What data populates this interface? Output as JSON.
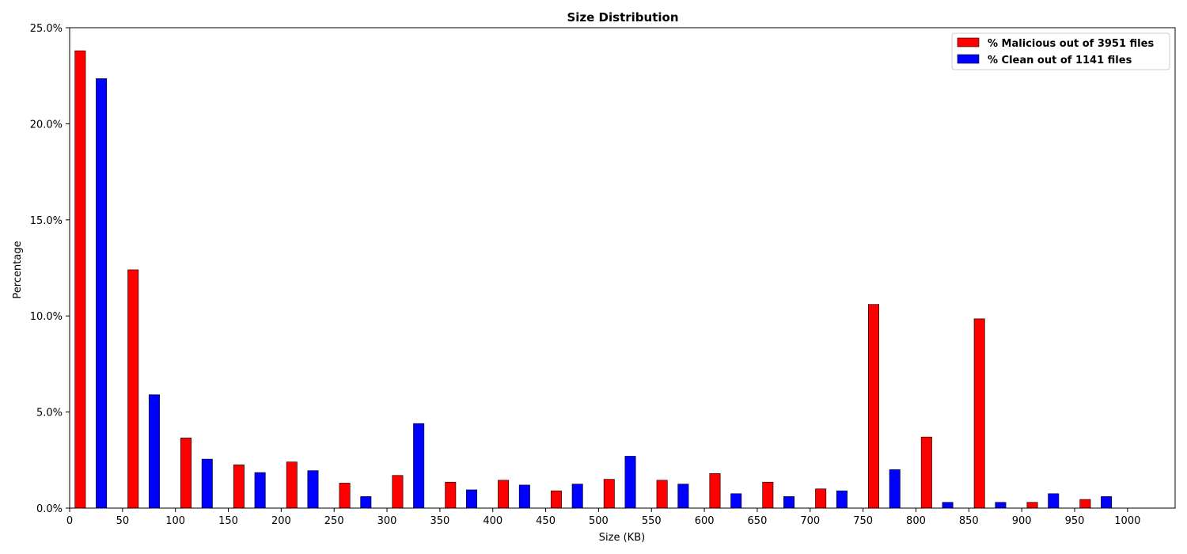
{
  "chart_data": {
    "type": "bar",
    "title": "Size Distribution",
    "xlabel": "Size (KB)",
    "ylabel": "Percentage",
    "xlim": [
      0,
      1045
    ],
    "ylim": [
      0,
      25
    ],
    "x_ticks": [
      0,
      50,
      100,
      150,
      200,
      250,
      300,
      350,
      400,
      450,
      500,
      550,
      600,
      650,
      700,
      750,
      800,
      850,
      900,
      950,
      1000
    ],
    "y_ticks": [
      0,
      5,
      10,
      15,
      20,
      25
    ],
    "y_tick_labels": [
      "0.0%",
      "5.0%",
      "10.0%",
      "15.0%",
      "20.0%",
      "25.0%"
    ],
    "grid": false,
    "legend_position": "top-right",
    "series": [
      {
        "name": "% Malicious out of 3951 files",
        "color": "#ff0000",
        "x": [
          10,
          60,
          110,
          160,
          210,
          260,
          310,
          360,
          410,
          460,
          510,
          560,
          610,
          660,
          710,
          760,
          810,
          860,
          910,
          960
        ],
        "values": [
          23.8,
          12.4,
          3.65,
          2.25,
          2.4,
          1.3,
          1.7,
          1.35,
          1.45,
          0.9,
          1.5,
          1.45,
          1.8,
          1.35,
          1.0,
          10.6,
          3.7,
          9.85,
          0.3,
          0.45
        ]
      },
      {
        "name": "% Clean out of 1141 files",
        "color": "#0000ff",
        "x": [
          30,
          80,
          130,
          180,
          230,
          280,
          330,
          380,
          430,
          480,
          530,
          580,
          630,
          680,
          730,
          780,
          830,
          880,
          930,
          980
        ],
        "values": [
          22.35,
          5.9,
          2.55,
          1.85,
          1.95,
          0.6,
          4.4,
          0.95,
          1.2,
          1.25,
          2.7,
          1.25,
          0.75,
          0.6,
          0.9,
          2.0,
          0.3,
          0.3,
          0.75,
          0.6
        ]
      }
    ]
  }
}
